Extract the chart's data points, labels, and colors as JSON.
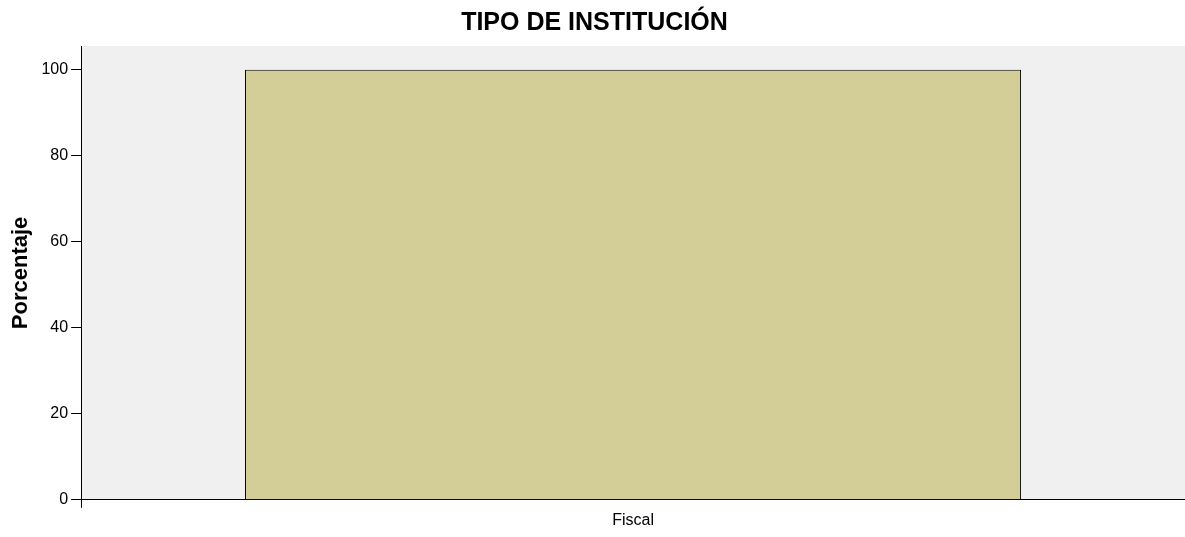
{
  "chart_data": {
    "type": "bar",
    "title": "TIPO DE INSTITUCIÓN",
    "ylabel": "Porcentaje",
    "categories": [
      "Fiscal"
    ],
    "values": [
      100
    ],
    "color": "#d3ce97",
    "ylim": [
      0,
      105.5
    ],
    "yticks": [
      0,
      20,
      40,
      60,
      80,
      100
    ],
    "grid": false,
    "legend": false
  }
}
